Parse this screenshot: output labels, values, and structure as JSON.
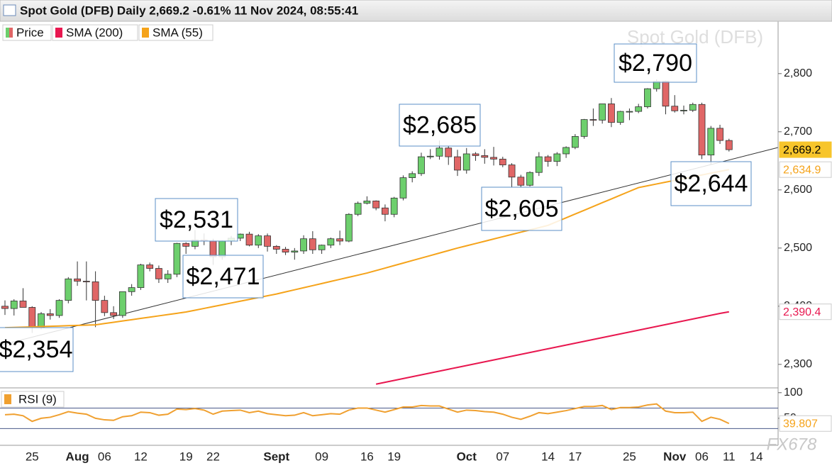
{
  "chart_data": [
    {
      "type": "candlestick",
      "title": "Spot Gold (DFB) Daily 2,669.2 -0.61% 11 Nov 2024, 08:55:41",
      "watermark": "Spot Gold (DFB)",
      "categories": [
        null,
        null,
        null,
        "25",
        null,
        null,
        null,
        null,
        "Aug",
        null,
        null,
        "06",
        null,
        null,
        null,
        "12",
        null,
        null,
        null,
        null,
        "19",
        null,
        null,
        "22",
        null,
        null,
        null,
        null,
        null,
        null,
        "Sept",
        null,
        null,
        null,
        null,
        "09",
        null,
        null,
        null,
        null,
        "16",
        null,
        null,
        "19",
        null,
        null,
        null,
        null,
        null,
        null,
        null,
        "Oct",
        null,
        null,
        null,
        "07",
        null,
        null,
        null,
        null,
        "14",
        null,
        null,
        "17",
        null,
        null,
        null,
        null,
        null,
        "25",
        null,
        null,
        null,
        null,
        "Nov",
        null,
        null,
        "06",
        null,
        null,
        "11",
        null,
        null,
        "14"
      ],
      "series": [
        {
          "name": "Price",
          "up_color": "#6dcf6d",
          "down_color": "#e06666",
          "open": [
            2400,
            2396,
            2409,
            2398,
            2364,
            2387,
            2384,
            2410,
            2447,
            2443,
            2442,
            2410,
            2389,
            2384,
            2425,
            2432,
            2471,
            2465,
            2447,
            2455,
            2508,
            2503,
            2514,
            2512,
            2485,
            2512,
            2517,
            2524,
            2505,
            2521,
            2503,
            2498,
            2493,
            2495,
            2516,
            2497,
            2505,
            2516,
            2512,
            2558,
            2577,
            2581,
            2569,
            2558,
            2586,
            2621,
            2628,
            2657,
            2658,
            2672,
            2657,
            2634,
            2662,
            2659,
            2656,
            2653,
            2643,
            2622,
            2608,
            2630,
            2657,
            2649,
            2662,
            2673,
            2692,
            2721,
            2720,
            2748,
            2716,
            2735,
            2735,
            2743,
            2774,
            2787,
            2744,
            2736,
            2737,
            2747,
            2660,
            2706,
            2685,
            null,
            null,
            null
          ],
          "high": [
            2410,
            2412,
            2431,
            2400,
            2390,
            2395,
            2412,
            2450,
            2477,
            2477,
            2460,
            2418,
            2400,
            2424,
            2438,
            2473,
            2475,
            2470,
            2462,
            2509,
            2510,
            2531,
            2525,
            2516,
            2513,
            2521,
            2525,
            2528,
            2524,
            2525,
            2505,
            2502,
            2500,
            2522,
            2529,
            2506,
            2518,
            2530,
            2560,
            2580,
            2589,
            2582,
            2575,
            2588,
            2625,
            2632,
            2664,
            2670,
            2685,
            2675,
            2669,
            2672,
            2665,
            2670,
            2674,
            2657,
            2646,
            2626,
            2632,
            2665,
            2660,
            2665,
            2675,
            2696,
            2722,
            2740,
            2748,
            2758,
            2736,
            2740,
            2748,
            2775,
            2790,
            2788,
            2763,
            2745,
            2750,
            2750,
            2710,
            2712,
            2688,
            null,
            null,
            null
          ],
          "low": [
            2385,
            2384,
            2400,
            2354,
            2360,
            2377,
            2380,
            2405,
            2435,
            2410,
            2364,
            2383,
            2378,
            2380,
            2418,
            2428,
            2460,
            2440,
            2440,
            2450,
            2490,
            2498,
            2505,
            2471,
            2480,
            2505,
            2512,
            2503,
            2500,
            2494,
            2490,
            2488,
            2480,
            2490,
            2490,
            2490,
            2500,
            2505,
            2510,
            2555,
            2575,
            2565,
            2546,
            2553,
            2582,
            2613,
            2624,
            2653,
            2652,
            2643,
            2624,
            2628,
            2650,
            2645,
            2642,
            2639,
            2605,
            2605,
            2606,
            2624,
            2640,
            2641,
            2655,
            2670,
            2688,
            2710,
            2714,
            2708,
            2712,
            2720,
            2732,
            2740,
            2769,
            2730,
            2733,
            2730,
            2734,
            2653,
            2644,
            2679,
            2666,
            null,
            null,
            null
          ],
          "close": [
            2396,
            2409,
            2398,
            2364,
            2387,
            2384,
            2410,
            2447,
            2443,
            2442,
            2410,
            2389,
            2384,
            2425,
            2432,
            2471,
            2465,
            2447,
            2455,
            2508,
            2503,
            2514,
            2512,
            2485,
            2512,
            2517,
            2524,
            2505,
            2521,
            2503,
            2498,
            2493,
            2495,
            2516,
            2497,
            2505,
            2516,
            2512,
            2558,
            2577,
            2581,
            2569,
            2558,
            2586,
            2621,
            2628,
            2657,
            2658,
            2672,
            2657,
            2634,
            2662,
            2659,
            2656,
            2653,
            2643,
            2622,
            2608,
            2630,
            2657,
            2649,
            2662,
            2673,
            2692,
            2721,
            2720,
            2748,
            2716,
            2735,
            2735,
            2743,
            2774,
            2787,
            2744,
            2736,
            2737,
            2747,
            2660,
            2706,
            2685,
            2669.2,
            null,
            null,
            null
          ]
        },
        {
          "name": "SMA (200)",
          "color": "#e8174f",
          "values": [
            null,
            null,
            null,
            null,
            null,
            null,
            null,
            null,
            null,
            null,
            null,
            null,
            null,
            null,
            null,
            null,
            null,
            null,
            null,
            null,
            null,
            null,
            null,
            null,
            null,
            null,
            null,
            null,
            null,
            null,
            null,
            null,
            null,
            null,
            null,
            null,
            null,
            null,
            null,
            null,
            null,
            2266,
            2269.2,
            2272.4,
            2275.6,
            2278.8,
            2282,
            2285.2,
            2288.4,
            2291.6,
            2294.8,
            2298,
            2301.2,
            2304.4,
            2307.6,
            2310.8,
            2314,
            2317.2,
            2320.4,
            2323.6,
            2326.8,
            2330,
            2333.2,
            2336.4,
            2339.6,
            2342.8,
            2346,
            2349.2,
            2352.4,
            2355.6,
            2358.8,
            2362,
            2365.2,
            2368.4,
            2371.6,
            2374.8,
            2378,
            2381.2,
            2384.4,
            2387.6,
            2390.4,
            null,
            null,
            null
          ]
        },
        {
          "name": "SMA (55)",
          "color": "#f5a31a",
          "values": [
            2363,
            2363.5,
            2364,
            2364.5,
            2365,
            2365.5,
            2366,
            2366.5,
            2367,
            2367.5,
            2368,
            2370.2,
            2372.4,
            2374.6,
            2376.8,
            2379,
            2381.2,
            2383.4,
            2385.6,
            2387.8,
            2390,
            2393.1,
            2396.2,
            2399.3,
            2402.4,
            2405.5,
            2408.6,
            2411.7,
            2414.8,
            2417.9,
            2421,
            2424.6,
            2428.2,
            2431.8,
            2435.4,
            2439,
            2442.6,
            2446.2,
            2449.8,
            2453.4,
            2457,
            2461.3,
            2465.6,
            2469.9,
            2474.2,
            2478.5,
            2482.8,
            2487.1,
            2491.4,
            2495.7,
            2500,
            2503.9,
            2507.8,
            2511.7,
            2515.6,
            2519.5,
            2523.4,
            2527.3,
            2531.2,
            2535.1,
            2539,
            2545.5,
            2552,
            2558.5,
            2565,
            2571.5,
            2578,
            2584.5,
            2591,
            2597.5,
            2604,
            2607.1,
            2610.2,
            2613.3,
            2616.4,
            2619.5,
            2622.6,
            2625.7,
            2628.8,
            2631.9,
            2634.9,
            null,
            null,
            null
          ]
        }
      ],
      "ylim": [
        2262,
        2890
      ],
      "yticks": [
        {
          "value": 2300,
          "label": "2,300"
        },
        {
          "value": 2400,
          "label": "2,400"
        },
        {
          "value": 2500,
          "label": "2,500"
        },
        {
          "value": 2600,
          "label": "2,600"
        },
        {
          "value": 2700,
          "label": "2,700"
        },
        {
          "value": 2800,
          "label": "2,800"
        }
      ],
      "markers": [
        {
          "value": 2669.2,
          "label": "2,669.2",
          "color": "#000000",
          "background": "#f7c52b"
        },
        {
          "value": 2634.9,
          "label": "2,634.9",
          "color": "#f5a31a",
          "background": "#ffffff"
        },
        {
          "value": 2390.4,
          "label": "2,390.4",
          "color": "#e8174f",
          "background": "#ffffff"
        }
      ],
      "annotations": [
        "$2,790",
        "$2,685",
        "$2,605",
        "$2,644",
        "$2,531",
        "$2,471",
        "$2,354"
      ]
    },
    {
      "type": "line",
      "series": [
        {
          "name": "RSI (9)",
          "color": "#f0a030",
          "values": [
            57,
            58,
            55,
            44,
            50,
            52,
            57,
            63,
            60,
            58,
            50,
            47,
            46,
            53,
            55,
            62,
            61,
            56,
            58,
            68,
            67,
            69,
            66,
            58,
            64,
            65,
            66,
            61,
            64,
            59,
            57,
            55,
            56,
            61,
            55,
            57,
            59,
            58,
            66,
            70,
            70,
            66,
            62,
            67,
            72,
            72,
            75,
            74,
            74,
            68,
            62,
            66,
            65,
            63,
            62,
            58,
            52,
            48,
            54,
            61,
            59,
            62,
            65,
            69,
            73,
            73,
            75,
            67,
            71,
            71,
            72,
            76,
            78,
            64,
            61,
            61,
            62,
            44,
            52,
            48,
            39.807,
            null,
            null,
            null
          ]
        }
      ],
      "ylim": [
        0,
        108
      ],
      "yticks": [
        100,
        50
      ],
      "levels": [
        70,
        30
      ],
      "markers": [
        {
          "value": 39.807,
          "label": "39.807",
          "color": "#f5a31a",
          "background": "#ffffff"
        }
      ],
      "brand": "FX678"
    }
  ]
}
